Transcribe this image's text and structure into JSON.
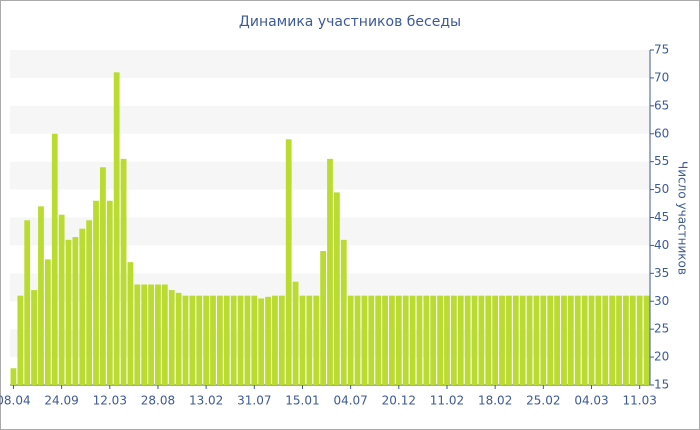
{
  "chart_data": {
    "type": "bar",
    "title": "Динамика участников беседы",
    "y_label": "Число участников",
    "categories": [
      "08.04",
      null,
      null,
      null,
      null,
      null,
      null,
      "24.09",
      null,
      null,
      null,
      null,
      null,
      null,
      "12.03",
      null,
      null,
      null,
      null,
      null,
      null,
      "28.08",
      null,
      null,
      null,
      null,
      null,
      null,
      "13.02",
      null,
      null,
      null,
      null,
      null,
      null,
      "31.07",
      null,
      null,
      null,
      null,
      null,
      null,
      "15.01",
      null,
      null,
      null,
      null,
      null,
      null,
      "04.07",
      null,
      null,
      null,
      null,
      null,
      null,
      "20.12",
      null,
      null,
      null,
      null,
      null,
      null,
      "11.02",
      null,
      null,
      null,
      null,
      null,
      null,
      "18.02",
      null,
      null,
      null,
      null,
      null,
      null,
      "25.02",
      null,
      null,
      null,
      null,
      null,
      null,
      "04.03",
      null,
      null,
      null,
      null,
      null,
      null,
      "11.03",
      null
    ],
    "values": [
      18,
      31,
      44.5,
      32,
      47,
      37.5,
      60,
      45.5,
      41,
      41.5,
      43,
      44.5,
      48,
      54,
      48,
      71,
      55.5,
      37,
      33,
      33,
      33,
      33,
      33,
      32,
      31.5,
      31,
      31,
      31,
      31,
      31,
      31,
      31,
      31,
      31,
      31,
      31,
      30.5,
      30.8,
      31,
      31,
      59,
      33.5,
      31,
      31,
      31,
      39,
      55.5,
      49.5,
      41,
      31,
      31,
      31,
      31,
      31,
      31,
      31,
      31,
      31,
      31,
      31,
      31,
      31,
      31,
      31,
      31,
      31,
      31,
      31,
      31,
      31,
      31,
      31,
      31,
      31,
      31,
      31,
      31,
      31,
      31,
      31,
      31,
      31,
      31,
      31,
      31,
      31,
      31,
      31,
      31,
      31,
      31,
      31,
      31
    ],
    "color": "#badb30",
    "ylim": [
      15,
      75
    ],
    "yticks": [
      15,
      20,
      25,
      30,
      35,
      40,
      45,
      50,
      55,
      60,
      65,
      70,
      75
    ],
    "grid": "bands",
    "y_axis_side": "right"
  }
}
